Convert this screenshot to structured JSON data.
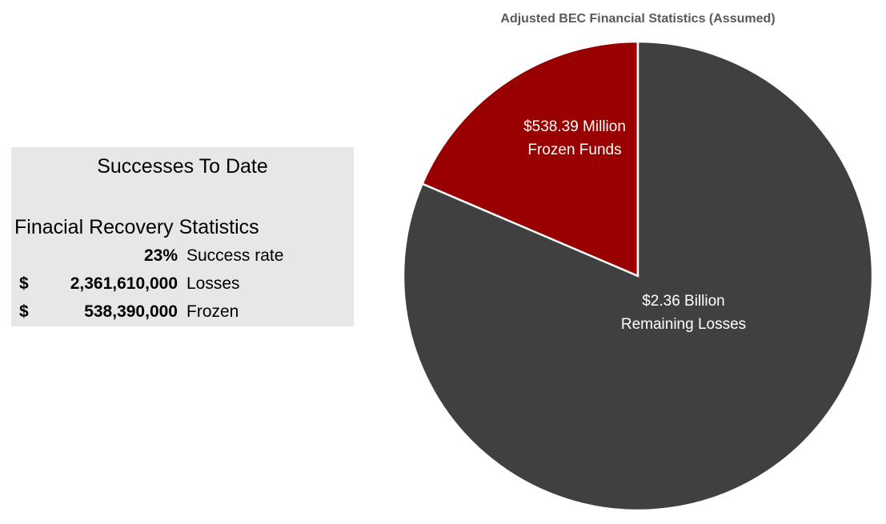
{
  "panel": {
    "title": "Successes To Date",
    "subtitle": "Finacial Recovery Statistics",
    "rows": [
      {
        "currency": null,
        "value": "23%",
        "label": "Success rate"
      },
      {
        "currency": "$",
        "value": "2,361,610,000",
        "label": "Losses"
      },
      {
        "currency": "$",
        "value": "538,390,000",
        "label": "Frozen"
      }
    ]
  },
  "chart_data": {
    "type": "pie",
    "title": "Adjusted BEC Financial Statistics (Assumed)",
    "categories": [
      "Frozen Funds",
      "Remaining Losses"
    ],
    "values": [
      538390000,
      2361610000
    ],
    "value_labels": [
      "$538.39 Million",
      "$2.36 Billion"
    ],
    "colors": [
      "#990000",
      "#404040"
    ]
  }
}
